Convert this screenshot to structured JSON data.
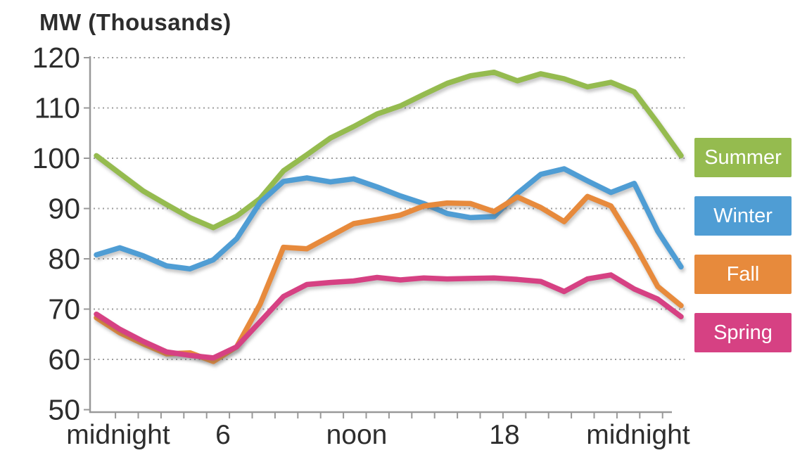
{
  "chart_data": {
    "type": "line",
    "title": "MW (Thousands)",
    "x_axis": {
      "labels": [
        "midnight",
        "6",
        "noon",
        "18",
        "midnight"
      ],
      "label_hours": [
        0,
        6,
        12,
        18,
        24
      ],
      "minor_ticks": "hourly"
    },
    "y_axis": {
      "title": "MW (Thousands)",
      "tick_values": [
        120,
        110,
        100,
        90,
        80,
        70,
        60,
        50
      ],
      "range": [
        50,
        120
      ],
      "gridlines": "dotted"
    },
    "legend_position": "right",
    "x_hours": [
      0,
      1,
      2,
      3,
      4,
      5,
      6,
      7,
      8,
      9,
      10,
      11,
      12,
      13,
      14,
      15,
      16,
      17,
      18,
      19,
      20,
      21,
      22,
      23,
      24,
      25
    ],
    "series": [
      {
        "name": "Summer",
        "color": "#95BB4F",
        "values": [
          100.5,
          97.0,
          93.5,
          90.8,
          88.2,
          86.2,
          88.5,
          92.0,
          97.5,
          100.7,
          104.0,
          106.3,
          108.8,
          110.4,
          112.7,
          114.9,
          116.4,
          117.1,
          115.4,
          116.8,
          115.8,
          114.2,
          115.1,
          113.2,
          107.0,
          100.5
        ]
      },
      {
        "name": "Winter",
        "color": "#4F9DD4",
        "values": [
          80.8,
          82.2,
          80.6,
          78.6,
          78.0,
          79.8,
          84.0,
          91.2,
          95.4,
          96.1,
          95.3,
          95.9,
          94.3,
          92.5,
          91.0,
          89.0,
          88.2,
          88.4,
          93.0,
          96.8,
          97.9,
          95.5,
          93.2,
          95.0,
          85.5,
          78.4
        ]
      },
      {
        "name": "Fall",
        "color": "#E78A3C",
        "values": [
          68.3,
          65.3,
          63.1,
          61.1,
          61.3,
          59.6,
          62.5,
          71.0,
          82.3,
          82.0,
          84.5,
          87.0,
          87.8,
          88.7,
          90.5,
          91.1,
          91.0,
          89.4,
          92.3,
          90.2,
          87.4,
          92.4,
          90.5,
          83.0,
          74.5,
          70.7
        ]
      },
      {
        "name": "Spring",
        "color": "#D64183",
        "values": [
          69.0,
          66.0,
          63.6,
          61.5,
          60.8,
          60.3,
          62.5,
          67.5,
          72.5,
          74.9,
          75.3,
          75.6,
          76.3,
          75.8,
          76.2,
          76.0,
          76.1,
          76.2,
          75.9,
          75.5,
          73.5,
          76.0,
          76.8,
          74.0,
          72.0,
          68.5
        ]
      }
    ]
  }
}
